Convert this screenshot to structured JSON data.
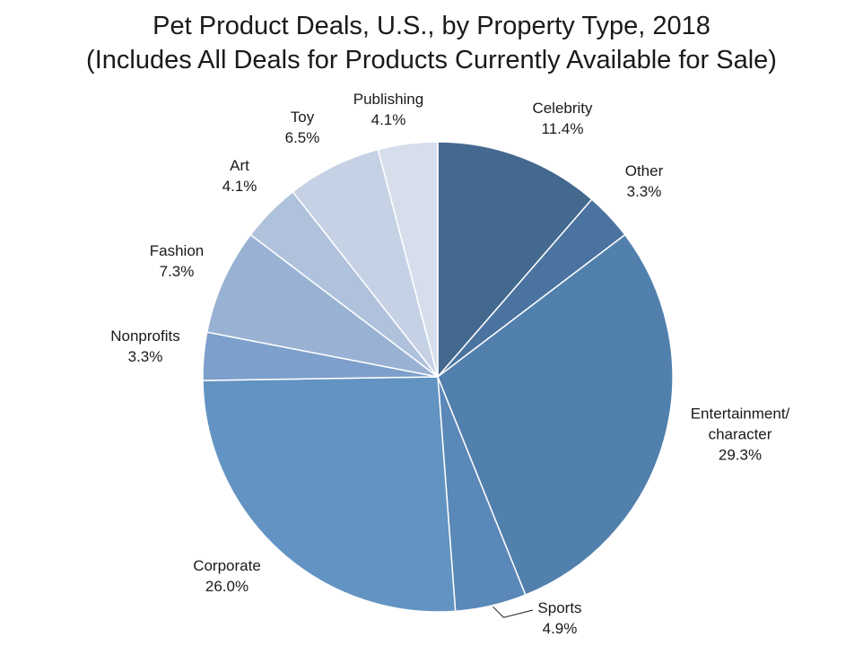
{
  "chart_data": {
    "type": "pie",
    "title": [
      "Pet Product Deals, U.S., by Property Type, 2018",
      "(Includes All Deals for Products Currently Available for Sale)"
    ],
    "slices": [
      {
        "name": "Celebrity",
        "label": [
          "Celebrity"
        ],
        "value_label": "11.4%",
        "value": 11.4,
        "color": "#44698f"
      },
      {
        "name": "Other",
        "label": [
          "Other"
        ],
        "value_label": "3.3%",
        "value": 3.3,
        "color": "#4a73a0"
      },
      {
        "name": "Entertainment/character",
        "label": [
          "Entertainment/",
          "character"
        ],
        "value_label": "29.3%",
        "value": 29.3,
        "color": "#5180ad"
      },
      {
        "name": "Sports",
        "label": [
          "Sports"
        ],
        "value_label": "4.9%",
        "value": 4.9,
        "color": "#5a88b8"
      },
      {
        "name": "Corporate",
        "label": [
          "Corporate"
        ],
        "value_label": "26.0%",
        "value": 26.0,
        "color": "#6293c2"
      },
      {
        "name": "Nonprofits",
        "label": [
          "Nonprofits"
        ],
        "value_label": "3.3%",
        "value": 3.3,
        "color": "#7d9fcb"
      },
      {
        "name": "Fashion",
        "label": [
          "Fashion"
        ],
        "value_label": "7.3%",
        "value": 7.3,
        "color": "#99b2d3"
      },
      {
        "name": "Art",
        "label": [
          "Art"
        ],
        "value_label": "4.1%",
        "value": 4.1,
        "color": "#b0c1dc"
      },
      {
        "name": "Toy",
        "label": [
          "Toy"
        ],
        "value_label": "6.5%",
        "value": 6.5,
        "color": "#c5d1e4"
      },
      {
        "name": "Publishing",
        "label": [
          "Publishing"
        ],
        "value_label": "4.1%",
        "value": 4.1,
        "color": "#d6deeb"
      }
    ],
    "start": "12 o'clock",
    "direction": "clockwise",
    "legend": "none"
  }
}
